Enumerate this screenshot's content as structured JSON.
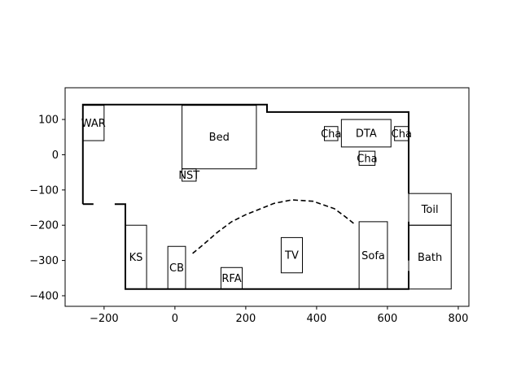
{
  "chart_data": {
    "type": "floor-plan",
    "xlim": [
      -310,
      830
    ],
    "ylim": [
      -430,
      190
    ],
    "x_ticks": [
      -200,
      0,
      200,
      400,
      600,
      800
    ],
    "y_ticks": [
      100,
      0,
      -100,
      -200,
      -300,
      -400
    ],
    "x_tick_labels": [
      "−200",
      "0",
      "200",
      "400",
      "600",
      "800"
    ],
    "y_tick_labels": [
      "100",
      "0",
      "−100",
      "−200",
      "−300",
      "−400"
    ],
    "walls": [
      [
        [
          -260,
          -140
        ],
        [
          -260,
          142
        ],
        [
          260,
          142
        ],
        [
          260,
          121
        ],
        [
          660,
          121
        ],
        [
          660,
          -110
        ]
      ],
      [
        [
          660,
          -190
        ],
        [
          660,
          -300
        ]
      ],
      [
        [
          660,
          -330
        ],
        [
          660,
          -381
        ],
        [
          -140,
          -381
        ],
        [
          -140,
          -140
        ],
        [
          -170,
          -140
        ]
      ],
      [
        [
          -230,
          -140
        ],
        [
          -260,
          -140
        ]
      ]
    ],
    "rooms": [
      {
        "label": "WAR",
        "x": [
          -260,
          -200
        ],
        "y": [
          40,
          140
        ]
      },
      {
        "label": "Bed",
        "x": [
          20,
          230
        ],
        "y": [
          -40,
          140
        ]
      },
      {
        "label": "NST",
        "x": [
          20,
          60
        ],
        "y": [
          -75,
          -40
        ]
      },
      {
        "label": "Cha",
        "x": [
          422,
          460
        ],
        "y": [
          40,
          80
        ]
      },
      {
        "label": "DTA",
        "x": [
          470,
          610
        ],
        "y": [
          22,
          100
        ]
      },
      {
        "label": "Cha",
        "x": [
          620,
          660
        ],
        "y": [
          40,
          80
        ]
      },
      {
        "label": "Cha",
        "x": [
          520,
          565
        ],
        "y": [
          -30,
          10
        ]
      },
      {
        "label": "Toil",
        "x": [
          660,
          780
        ],
        "y": [
          -200,
          -110
        ]
      },
      {
        "label": "KS",
        "x": [
          -140,
          -80
        ],
        "y": [
          -381,
          -200
        ]
      },
      {
        "label": "CB",
        "x": [
          -20,
          30
        ],
        "y": [
          -381,
          -260
        ]
      },
      {
        "label": "RFA",
        "x": [
          130,
          190
        ],
        "y": [
          -381,
          -320
        ]
      },
      {
        "label": "TV",
        "x": [
          300,
          360
        ],
        "y": [
          -335,
          -235
        ]
      },
      {
        "label": "Sofa",
        "x": [
          520,
          600
        ],
        "y": [
          -381,
          -190
        ]
      },
      {
        "label": "Bath",
        "x": [
          660,
          780
        ],
        "y": [
          -381,
          -200
        ]
      }
    ],
    "path": [
      [
        50,
        -280
      ],
      [
        80,
        -255
      ],
      [
        120,
        -220
      ],
      [
        160,
        -190
      ],
      [
        200,
        -170
      ],
      [
        250,
        -150
      ],
      [
        280,
        -138
      ],
      [
        330,
        -128
      ],
      [
        390,
        -132
      ],
      [
        450,
        -153
      ],
      [
        480,
        -175
      ],
      [
        505,
        -195
      ]
    ]
  }
}
